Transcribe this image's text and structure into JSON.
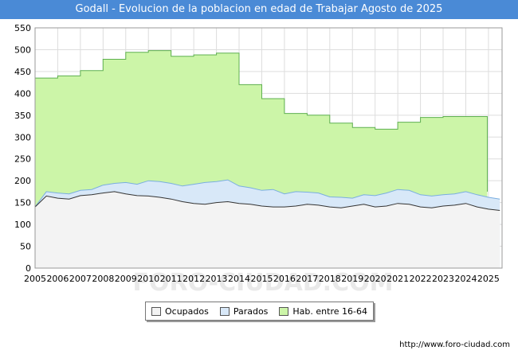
{
  "header": {
    "title": "Godall - Evolucion de la poblacion en edad de Trabajar Agosto de 2025"
  },
  "watermark": "FORO-CIUDAD.COM",
  "footer": {
    "source": "http://www.foro-ciudad.com"
  },
  "colors": {
    "hab": "#ccf5a8",
    "hab_line": "#5fb050",
    "parados": "#d8e8f8",
    "parados_line": "#7aaee0",
    "ocupados": "#f3f3f3",
    "ocupados_line": "#333333",
    "grid": "#dddddd"
  },
  "chart_data": {
    "type": "area",
    "title": "Godall - Evolucion de la poblacion en edad de Trabajar Agosto de 2025",
    "xlim": [
      2005,
      2025.6
    ],
    "ylim": [
      0,
      550
    ],
    "x_ticks": [
      "2005",
      "2006",
      "2007",
      "2008",
      "2009",
      "2010",
      "2011",
      "2012",
      "2013",
      "2014",
      "2015",
      "2016",
      "2017",
      "2018",
      "2019",
      "2020",
      "2021",
      "2022",
      "2023",
      "2024",
      "2025"
    ],
    "y_ticks": [
      0,
      50,
      100,
      150,
      200,
      250,
      300,
      350,
      400,
      450,
      500,
      550
    ],
    "legend": [
      {
        "label": "Ocupados",
        "color": "#f3f3f3"
      },
      {
        "label": "Parados",
        "color": "#d8e8f8"
      },
      {
        "label": "Hab. entre 16-64",
        "color": "#ccf5a8"
      }
    ],
    "series": [
      {
        "name": "Hab. entre 16-64",
        "type": "step",
        "x": [
          2005,
          2006,
          2007,
          2008,
          2009,
          2010,
          2011,
          2012,
          2013,
          2014,
          2015,
          2016,
          2017,
          2018,
          2019,
          2020,
          2021,
          2022,
          2023,
          2024
        ],
        "values": [
          435,
          440,
          452,
          478,
          494,
          498,
          485,
          488,
          492,
          420,
          388,
          354,
          350,
          332,
          322,
          318,
          334,
          345,
          347,
          347
        ]
      },
      {
        "name": "Parados",
        "type": "line",
        "x": [
          2005,
          2005.5,
          2006,
          2006.5,
          2007,
          2007.5,
          2008,
          2008.5,
          2009,
          2009.5,
          2010,
          2010.5,
          2011,
          2011.5,
          2012,
          2012.5,
          2013,
          2013.5,
          2014,
          2014.5,
          2015,
          2015.5,
          2016,
          2016.5,
          2017,
          2017.5,
          2018,
          2018.5,
          2019,
          2019.5,
          2020,
          2020.5,
          2021,
          2021.5,
          2022,
          2022.5,
          2023,
          2023.5,
          2024,
          2024.5,
          2025,
          2025.5
        ],
        "values": [
          140,
          175,
          172,
          170,
          178,
          180,
          190,
          194,
          196,
          192,
          200,
          198,
          194,
          188,
          192,
          196,
          198,
          202,
          188,
          184,
          178,
          180,
          170,
          175,
          174,
          172,
          163,
          162,
          160,
          168,
          166,
          172,
          180,
          178,
          168,
          165,
          168,
          170,
          175,
          168,
          162,
          158
        ]
      },
      {
        "name": "Ocupados",
        "type": "line",
        "x": [
          2005,
          2005.5,
          2006,
          2006.5,
          2007,
          2007.5,
          2008,
          2008.5,
          2009,
          2009.5,
          2010,
          2010.5,
          2011,
          2011.5,
          2012,
          2012.5,
          2013,
          2013.5,
          2014,
          2014.5,
          2015,
          2015.5,
          2016,
          2016.5,
          2017,
          2017.5,
          2018,
          2018.5,
          2019,
          2019.5,
          2020,
          2020.5,
          2021,
          2021.5,
          2022,
          2022.5,
          2023,
          2023.5,
          2024,
          2024.5,
          2025,
          2025.5
        ],
        "values": [
          140,
          165,
          160,
          158,
          166,
          168,
          172,
          175,
          170,
          166,
          165,
          162,
          158,
          152,
          148,
          146,
          150,
          152,
          148,
          146,
          142,
          140,
          140,
          142,
          146,
          144,
          140,
          138,
          142,
          146,
          140,
          142,
          148,
          146,
          140,
          138,
          142,
          144,
          148,
          140,
          135,
          132
        ]
      }
    ]
  }
}
